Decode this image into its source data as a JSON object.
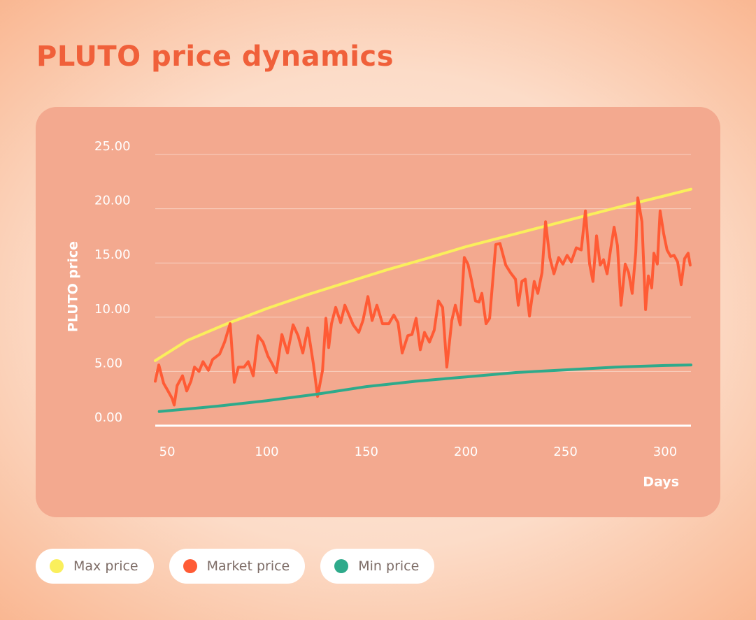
{
  "chart_data": {
    "type": "line",
    "title": "PLUTO price dynamics",
    "x_label": "Days",
    "y_label": "PLUTO price",
    "xlim": [
      44,
      313
    ],
    "ylim": [
      0,
      25
    ],
    "xticks": [
      50,
      100,
      150,
      200,
      250,
      300
    ],
    "yticks": [
      {
        "value": 0,
        "label": "0.00"
      },
      {
        "value": 5,
        "label": "5.00"
      },
      {
        "value": 10,
        "label": "10.00"
      },
      {
        "value": 15,
        "label": "15.00"
      },
      {
        "value": 20,
        "label": "20.00"
      },
      {
        "value": 25,
        "label": "25.00"
      }
    ],
    "grid": true,
    "series": [
      {
        "name": "Max price",
        "color": "#faef5c",
        "x": [
          44,
          60,
          80,
          100,
          120,
          140,
          160,
          180,
          200,
          220,
          240,
          260,
          280,
          300,
          313
        ],
        "values": [
          6.0,
          7.85,
          9.4,
          10.8,
          12.05,
          13.2,
          14.35,
          15.4,
          16.5,
          17.45,
          18.4,
          19.35,
          20.3,
          21.2,
          21.8
        ]
      },
      {
        "name": "Market price",
        "color": "#ff5b35",
        "x": [
          44,
          45.8,
          48.2,
          50.4,
          52.5,
          53.5,
          55,
          57.7,
          59.8,
          61.9,
          63.7,
          66,
          68,
          70.7,
          72.8,
          76.3,
          78.8,
          81.6,
          83.7,
          85.8,
          88.6,
          90.7,
          93.2,
          95.6,
          98.1,
          100.6,
          102.7,
          104.8,
          107.6,
          110.4,
          113.2,
          115.7,
          118.1,
          120.6,
          123.4,
          125.5,
          128,
          129.7,
          131.1,
          132.5,
          134.6,
          137.1,
          139.2,
          141.3,
          143.4,
          146.2,
          148.3,
          150.8,
          152.9,
          155.3,
          158.1,
          161.3,
          163.8,
          165.9,
          168,
          170.8,
          172.9,
          175,
          177.1,
          179.2,
          181.7,
          184.1,
          186.2,
          188.3,
          190.4,
          192.9,
          194.7,
          197.1,
          199.2,
          201,
          202.7,
          204.8,
          206.6,
          208,
          210.1,
          211.9,
          215,
          217.1,
          220,
          222.4,
          224.9,
          226.3,
          228.1,
          229.8,
          231.9,
          234.3,
          236.1,
          238.2,
          240,
          242.1,
          244.2,
          246.6,
          248.7,
          250.8,
          252.9,
          255.4,
          257.9,
          260,
          262.1,
          263.8,
          265.6,
          267.4,
          269.1,
          270.9,
          272.6,
          274.4,
          276.1,
          277.9,
          280,
          281.7,
          283.5,
          285.3,
          286.3,
          288.4,
          290.2,
          291.6,
          293.3,
          294.4,
          296.1,
          297.5,
          299.3,
          301,
          302.8,
          304.5,
          306.3,
          308.1,
          309.8,
          311.6,
          312.6
        ],
        "values": [
          4.1,
          5.6,
          3.9,
          3.2,
          2.5,
          1.9,
          3.7,
          4.6,
          3.2,
          4.1,
          5.4,
          5.0,
          5.9,
          5.1,
          6.1,
          6.6,
          7.7,
          9.4,
          4.0,
          5.4,
          5.4,
          5.9,
          4.6,
          8.3,
          7.7,
          6.4,
          5.7,
          4.9,
          8.4,
          6.7,
          9.3,
          8.3,
          6.7,
          9.0,
          5.7,
          2.7,
          5.1,
          9.9,
          7.2,
          9.4,
          10.9,
          9.5,
          11.1,
          10.2,
          9.3,
          8.6,
          9.7,
          11.9,
          9.7,
          11.1,
          9.4,
          9.4,
          10.2,
          9.5,
          6.7,
          8.3,
          8.4,
          9.9,
          7.0,
          8.6,
          7.7,
          8.8,
          11.5,
          10.9,
          5.4,
          9.7,
          11.1,
          9.3,
          15.5,
          14.9,
          13.5,
          11.5,
          11.4,
          12.2,
          9.4,
          9.9,
          16.7,
          16.8,
          14.8,
          14.1,
          13.5,
          11.1,
          13.3,
          13.5,
          10.1,
          13.3,
          12.2,
          14.1,
          18.8,
          15.5,
          14.0,
          15.5,
          14.9,
          15.7,
          15.1,
          16.4,
          16.2,
          19.8,
          14.9,
          13.3,
          17.5,
          14.8,
          15.3,
          14.0,
          16.2,
          18.3,
          16.6,
          11.1,
          14.9,
          14.1,
          12.2,
          16.0,
          21.0,
          18.8,
          10.7,
          13.8,
          12.7,
          15.9,
          14.9,
          19.8,
          17.7,
          16.2,
          15.6,
          15.7,
          15.1,
          13.0,
          15.4,
          15.9,
          14.8
        ]
      },
      {
        "name": "Min price",
        "color": "#2eaa8b",
        "x": [
          46,
          75,
          100,
          125,
          150,
          175,
          200,
          225,
          250,
          275,
          300,
          313
        ],
        "values": [
          1.3,
          1.8,
          2.3,
          2.9,
          3.6,
          4.1,
          4.5,
          4.9,
          5.15,
          5.4,
          5.55,
          5.6
        ]
      }
    ]
  }
}
